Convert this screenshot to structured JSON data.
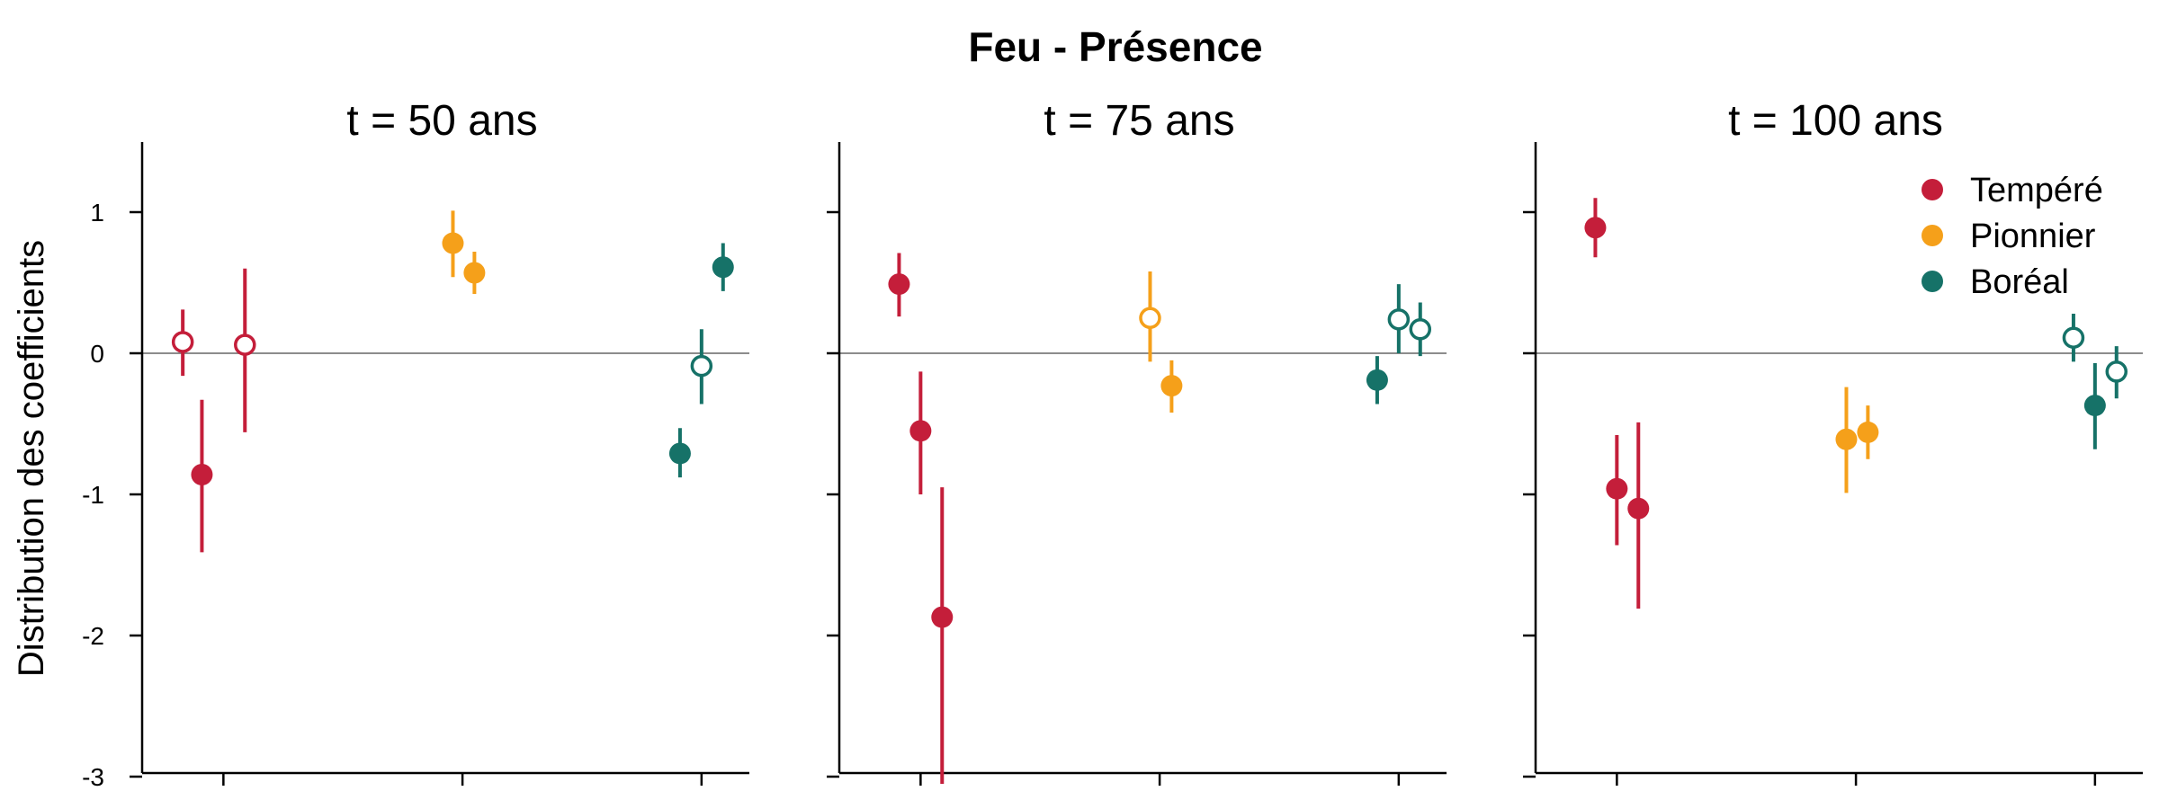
{
  "chart_data": {
    "type": "scatter",
    "title": "Feu - Présence",
    "ylabel": "Distribution des coefficients",
    "ylim": [
      -3,
      1.5
    ],
    "yticks": [
      1,
      0,
      -1,
      -2,
      -3
    ],
    "tick_labels": [
      "1",
      "0",
      "-1",
      "-2",
      "-3"
    ],
    "reference_line": 0,
    "legend_position": "top-right",
    "series": [
      {
        "name": "Tempéré",
        "color": "#C41E3A"
      },
      {
        "name": "Pionnier",
        "color": "#F5A01A"
      },
      {
        "name": "Boréal",
        "color": "#167268"
      }
    ],
    "panels": [
      {
        "title": "t = 50 ans",
        "points": [
          {
            "series": "Tempéré",
            "x": 0.83,
            "y": 0.08,
            "lo": -0.16,
            "hi": 0.31,
            "filled": false
          },
          {
            "series": "Tempéré",
            "x": 0.91,
            "y": -0.86,
            "lo": -1.41,
            "hi": -0.33,
            "filled": true
          },
          {
            "series": "Tempéré",
            "x": 1.09,
            "y": 0.06,
            "lo": -0.56,
            "hi": 0.6,
            "filled": false
          },
          {
            "series": "Pionnier",
            "x": 1.96,
            "y": 0.78,
            "lo": 0.54,
            "hi": 1.01,
            "filled": true
          },
          {
            "series": "Pionnier",
            "x": 2.05,
            "y": 0.57,
            "lo": 0.42,
            "hi": 0.72,
            "filled": true
          },
          {
            "series": "Boréal",
            "x": 2.91,
            "y": -0.71,
            "lo": -0.88,
            "hi": -0.53,
            "filled": true
          },
          {
            "series": "Boréal",
            "x": 3.0,
            "y": -0.09,
            "lo": -0.36,
            "hi": 0.17,
            "filled": false
          },
          {
            "series": "Boréal",
            "x": 3.09,
            "y": 0.61,
            "lo": 0.44,
            "hi": 0.78,
            "filled": true
          }
        ]
      },
      {
        "title": "t = 75 ans",
        "points": [
          {
            "series": "Tempéré",
            "x": 0.91,
            "y": 0.49,
            "lo": 0.26,
            "hi": 0.71,
            "filled": true
          },
          {
            "series": "Tempéré",
            "x": 1.0,
            "y": -0.55,
            "lo": -1.0,
            "hi": -0.13,
            "filled": true
          },
          {
            "series": "Tempéré",
            "x": 1.09,
            "y": -1.87,
            "lo": -3.1,
            "hi": -0.95,
            "filled": true
          },
          {
            "series": "Pionnier",
            "x": 1.96,
            "y": 0.25,
            "lo": -0.06,
            "hi": 0.58,
            "filled": false
          },
          {
            "series": "Pionnier",
            "x": 2.05,
            "y": -0.23,
            "lo": -0.42,
            "hi": -0.05,
            "filled": true
          },
          {
            "series": "Boréal",
            "x": 2.91,
            "y": -0.19,
            "lo": -0.36,
            "hi": -0.02,
            "filled": true
          },
          {
            "series": "Boréal",
            "x": 3.0,
            "y": 0.24,
            "lo": 0.0,
            "hi": 0.49,
            "filled": false
          },
          {
            "series": "Boréal",
            "x": 3.09,
            "y": 0.17,
            "lo": -0.02,
            "hi": 0.36,
            "filled": false
          }
        ]
      },
      {
        "title": "t = 100 ans",
        "points": [
          {
            "series": "Tempéré",
            "x": 0.91,
            "y": 0.89,
            "lo": 0.68,
            "hi": 1.1,
            "filled": true
          },
          {
            "series": "Tempéré",
            "x": 1.0,
            "y": -0.96,
            "lo": -1.36,
            "hi": -0.58,
            "filled": true
          },
          {
            "series": "Tempéré",
            "x": 1.09,
            "y": -1.1,
            "lo": -1.81,
            "hi": -0.49,
            "filled": true
          },
          {
            "series": "Pionnier",
            "x": 1.96,
            "y": -0.61,
            "lo": -0.99,
            "hi": -0.24,
            "filled": true
          },
          {
            "series": "Pionnier",
            "x": 2.05,
            "y": -0.56,
            "lo": -0.75,
            "hi": -0.37,
            "filled": true
          },
          {
            "series": "Boréal",
            "x": 2.91,
            "y": 0.11,
            "lo": -0.06,
            "hi": 0.28,
            "filled": false
          },
          {
            "series": "Boréal",
            "x": 3.0,
            "y": -0.37,
            "lo": -0.68,
            "hi": -0.07,
            "filled": true
          },
          {
            "series": "Boréal",
            "x": 3.09,
            "y": -0.13,
            "lo": -0.32,
            "hi": 0.05,
            "filled": false
          }
        ]
      }
    ]
  }
}
